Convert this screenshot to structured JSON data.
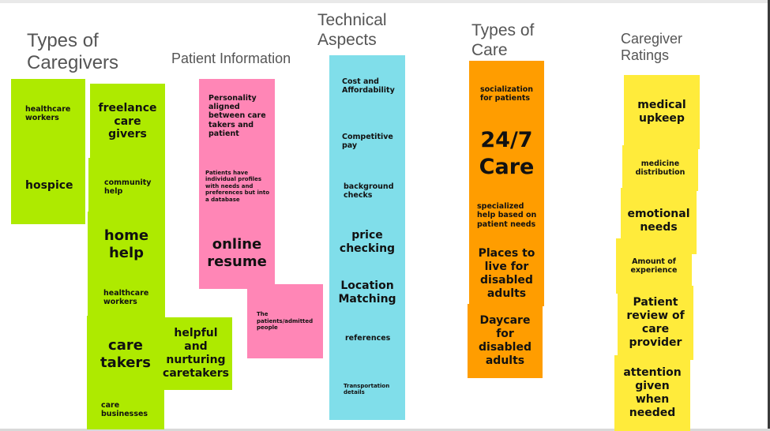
{
  "columns": {
    "caregivers": {
      "heading": "Types of\nCaregivers",
      "notes": [
        "healthcare\nworkers",
        "hospice",
        "freelance\ncare\ngivers",
        "community\nhelp",
        "home\nhelp",
        "healthcare\nworkers",
        "care\ntakers",
        "care\nbusinesses",
        "helpful\nand\nnurturing\ncaretakers"
      ]
    },
    "patient_info": {
      "heading": "Patient Information",
      "notes": [
        "Personality\naligned\nbetween care\ntakers and\npatient",
        "Patients have\nindividual profiles\nwith needs and\npreferences but into\na database",
        "online\nresume",
        "The\npatients/admitted\npeople"
      ]
    },
    "technical": {
      "heading": "Technical\nAspects",
      "notes": [
        "Cost and\nAffordability",
        "Competitive\npay",
        "background\nchecks",
        "price\nchecking",
        "Location\nMatching",
        "references",
        "Transportation\ndetails"
      ]
    },
    "care_types": {
      "heading": "Types of\nCare",
      "notes": [
        "socialization\nfor patients",
        "24/7\nCare",
        "specialized\nhelp based on\npatient needs",
        "Places to\nlive for\ndisabled\nadults",
        "Daycare\nfor\ndisabled\nadults"
      ]
    },
    "ratings": {
      "heading": "Caregiver\nRatings",
      "notes": [
        "medical\nupkeep",
        "medicine\ndistribution",
        "emotional\nneeds",
        "Amount of\nexperience",
        "Patient\nreview of\ncare\nprovider",
        "attention\ngiven\nwhen\nneeded"
      ]
    }
  },
  "colors": {
    "green": "#aeea00",
    "pink": "#ff86b6",
    "cyan": "#80deea",
    "orange": "#ff9d00",
    "yellow": "#ffeb3b",
    "heading": "#555555"
  }
}
